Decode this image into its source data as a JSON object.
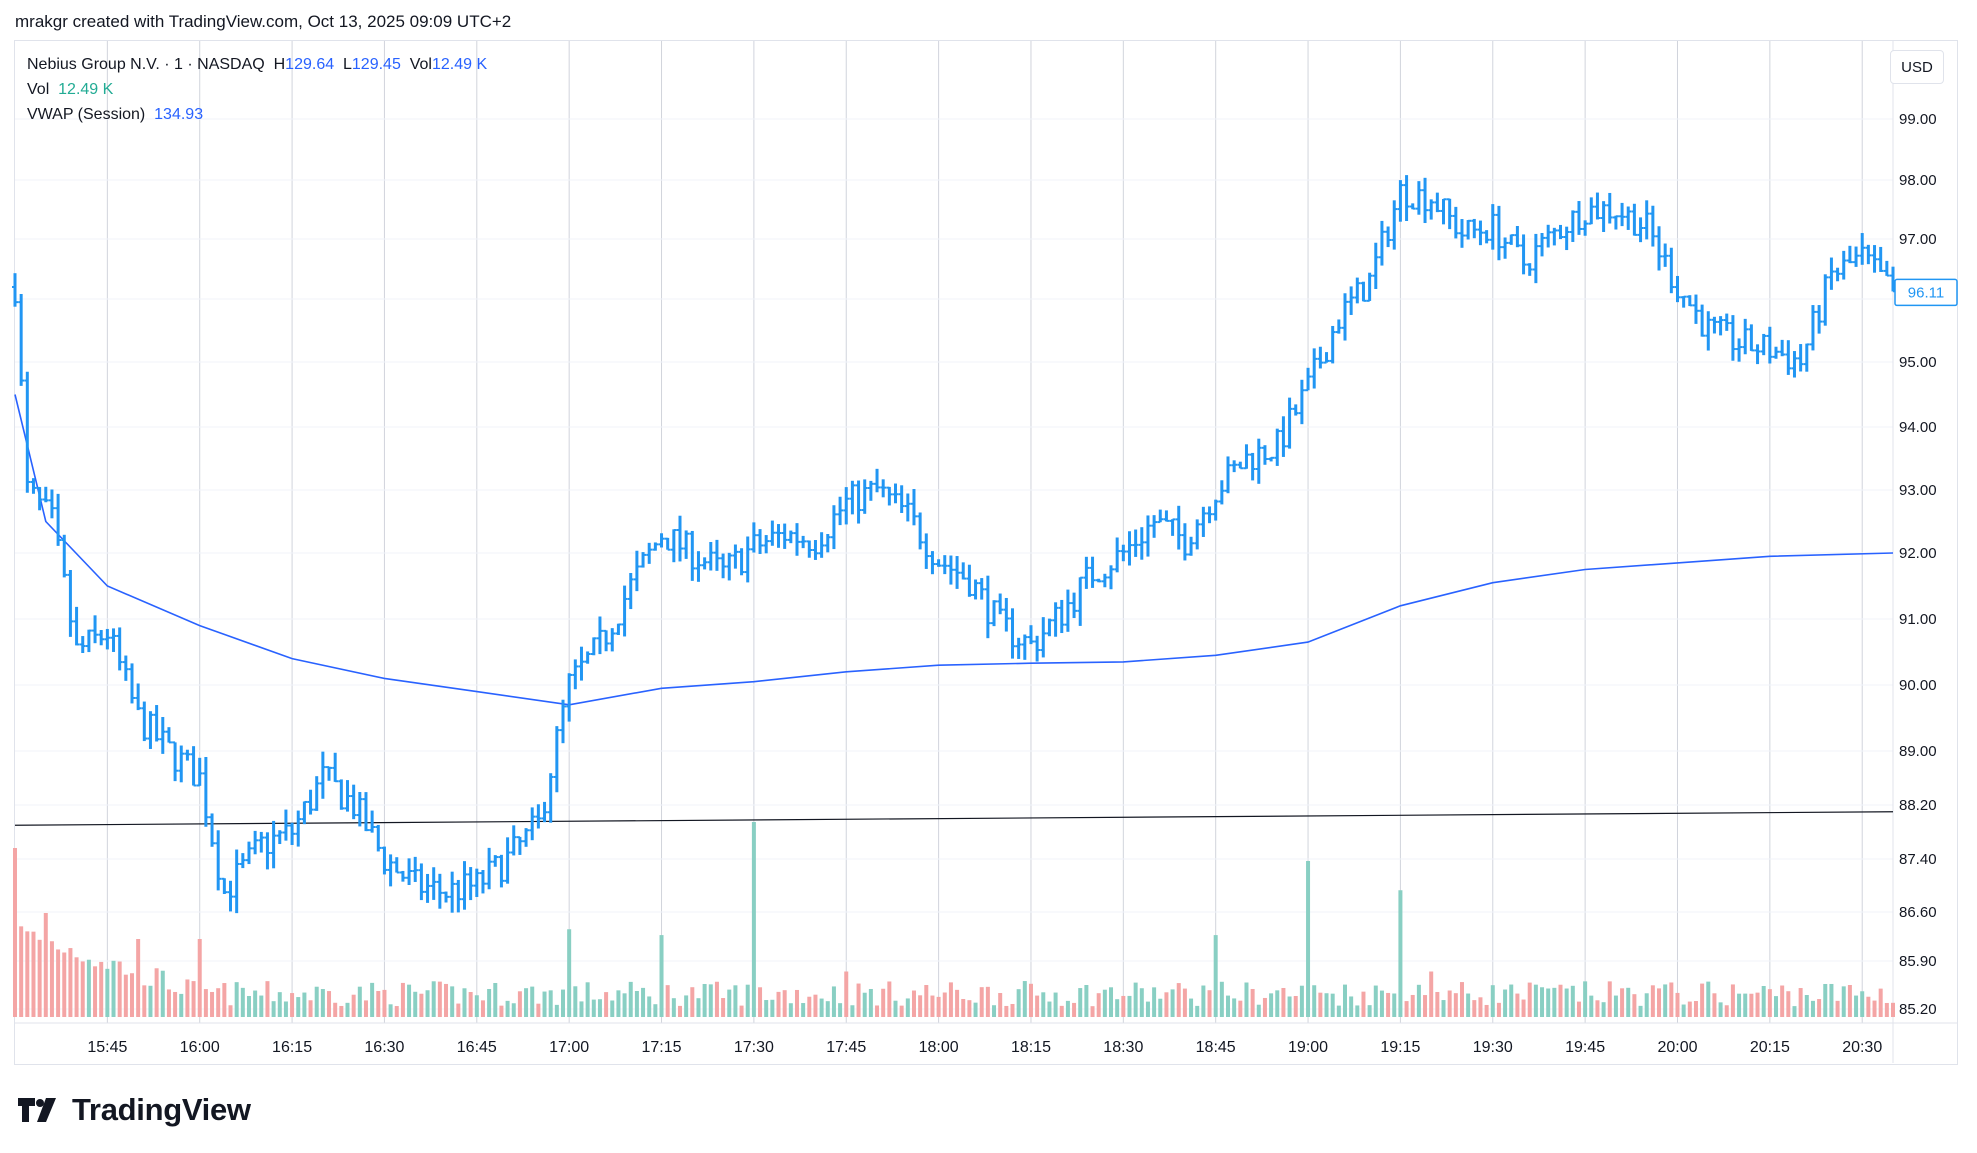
{
  "header": {
    "text": "mrakgr created with TradingView.com, Oct 13, 2025 09:09 UTC+2"
  },
  "legend": {
    "symbol": "Nebius Group N.V. · 1 · NASDAQ",
    "h_label": "H",
    "h_value": "129.64",
    "l_label": "L",
    "l_value": "129.45",
    "vol_label": "Vol",
    "vol_value": "12.49 K",
    "vol2_label": "Vol",
    "vol2_value": "12.49 K",
    "vwap_label": "VWAP (Session)",
    "vwap_value": "134.93"
  },
  "currency": "USD",
  "footer": {
    "brand": "TradingView"
  },
  "colors": {
    "bar": "#2196f3",
    "vwap": "#2962ff",
    "line": "#131722",
    "vol_up": "#89cfc3",
    "vol_down": "#f4a5a5",
    "grid": "#d1d4dc",
    "price_label_bg": "#ffffff"
  },
  "chart_data": {
    "type": "ohlc",
    "x_tick_labels": [
      "15:45",
      "16:00",
      "16:15",
      "16:30",
      "16:45",
      "17:00",
      "17:15",
      "17:30",
      "17:45",
      "18:00",
      "18:15",
      "18:30",
      "18:45",
      "19:00",
      "19:15",
      "19:30",
      "19:45",
      "20:00",
      "20:15",
      "20:30"
    ],
    "y_tick_labels": [
      "99.00",
      "98.00",
      "97.00",
      "96.00",
      "95.00",
      "94.00",
      "93.00",
      "92.00",
      "91.00",
      "90.00",
      "89.00",
      "88.20",
      "87.40",
      "86.60",
      "85.90",
      "85.20"
    ],
    "last_price": "96.11",
    "price_anchors": [
      [
        "15:30",
        96.2
      ],
      [
        "15:32",
        93.0
      ],
      [
        "15:36",
        92.5
      ],
      [
        "15:40",
        90.5
      ],
      [
        "15:45",
        90.8
      ],
      [
        "15:50",
        89.5
      ],
      [
        "15:55",
        89.0
      ],
      [
        "16:00",
        88.6
      ],
      [
        "16:04",
        86.9
      ],
      [
        "16:10",
        87.6
      ],
      [
        "16:15",
        87.8
      ],
      [
        "16:20",
        88.6
      ],
      [
        "16:25",
        88.2
      ],
      [
        "16:30",
        87.4
      ],
      [
        "16:35",
        87.0
      ],
      [
        "16:40",
        86.9
      ],
      [
        "16:45",
        87.0
      ],
      [
        "16:50",
        87.4
      ],
      [
        "16:55",
        87.9
      ],
      [
        "17:00",
        90.0
      ],
      [
        "17:05",
        90.6
      ],
      [
        "17:10",
        91.5
      ],
      [
        "17:15",
        92.3
      ],
      [
        "17:20",
        92.0
      ],
      [
        "17:25",
        91.7
      ],
      [
        "17:30",
        92.1
      ],
      [
        "17:35",
        92.3
      ],
      [
        "17:40",
        92.2
      ],
      [
        "17:45",
        92.8
      ],
      [
        "17:50",
        93.0
      ],
      [
        "17:55",
        92.6
      ],
      [
        "18:00",
        91.9
      ],
      [
        "18:05",
        91.6
      ],
      [
        "18:10",
        90.9
      ],
      [
        "18:15",
        90.6
      ],
      [
        "18:20",
        91.1
      ],
      [
        "18:25",
        91.7
      ],
      [
        "18:30",
        92.0
      ],
      [
        "18:35",
        92.5
      ],
      [
        "18:40",
        92.2
      ],
      [
        "18:45",
        93.0
      ],
      [
        "18:50",
        93.5
      ],
      [
        "18:55",
        93.7
      ],
      [
        "19:00",
        94.6
      ],
      [
        "19:05",
        95.7
      ],
      [
        "19:10",
        96.3
      ],
      [
        "19:15",
        97.8
      ],
      [
        "19:20",
        97.7
      ],
      [
        "19:25",
        97.1
      ],
      [
        "19:30",
        97.2
      ],
      [
        "19:35",
        96.6
      ],
      [
        "19:40",
        97.1
      ],
      [
        "19:45",
        97.5
      ],
      [
        "19:50",
        97.5
      ],
      [
        "19:55",
        97.2
      ],
      [
        "20:00",
        96.2
      ],
      [
        "20:05",
        95.5
      ],
      [
        "20:10",
        95.3
      ],
      [
        "20:15",
        95.2
      ],
      [
        "20:20",
        95.0
      ],
      [
        "20:25",
        96.4
      ],
      [
        "20:30",
        96.7
      ],
      [
        "20:35",
        96.1
      ]
    ],
    "vwap": [
      [
        "15:30",
        94.5
      ],
      [
        "15:35",
        92.5
      ],
      [
        "15:45",
        91.5
      ],
      [
        "16:00",
        90.9
      ],
      [
        "16:15",
        90.4
      ],
      [
        "16:30",
        90.1
      ],
      [
        "16:45",
        89.9
      ],
      [
        "17:00",
        89.7
      ],
      [
        "17:15",
        89.95
      ],
      [
        "17:30",
        90.05
      ],
      [
        "17:45",
        90.2
      ],
      [
        "18:00",
        90.3
      ],
      [
        "18:15",
        90.33
      ],
      [
        "18:30",
        90.35
      ],
      [
        "18:45",
        90.45
      ],
      [
        "19:00",
        90.65
      ],
      [
        "19:15",
        91.2
      ],
      [
        "19:30",
        91.55
      ],
      [
        "19:45",
        91.75
      ],
      [
        "20:00",
        91.85
      ],
      [
        "20:15",
        91.95
      ],
      [
        "20:35",
        92.0
      ]
    ],
    "horizontal_line": [
      [
        "15:30",
        87.9
      ],
      [
        "20:35",
        88.1
      ]
    ],
    "volume_spikes_up": [
      [
        "17:30",
        1.0
      ],
      [
        "19:00",
        0.8
      ],
      [
        "19:15",
        0.65
      ],
      [
        "17:00",
        0.45
      ],
      [
        "17:15",
        0.42
      ],
      [
        "18:45",
        0.42
      ]
    ],
    "volume_spikes_down": [
      [
        "15:30",
        1.3
      ],
      [
        "15:35",
        0.8
      ],
      [
        "15:50",
        0.6
      ],
      [
        "16:00",
        0.6
      ],
      [
        "17:45",
        0.35
      ],
      [
        "19:20",
        0.35
      ]
    ]
  }
}
